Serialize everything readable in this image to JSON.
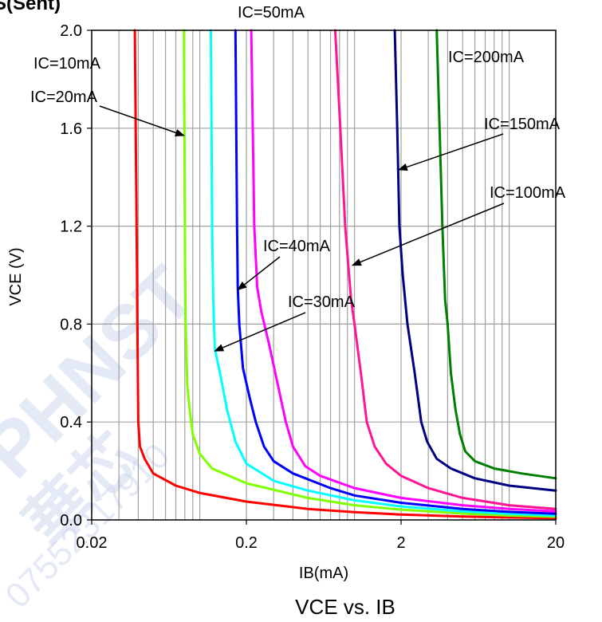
{
  "header": {
    "fragment": "S(Sent)"
  },
  "watermark": {
    "brand": "PHNST",
    "cn": "華芯",
    "phone": "07552317910"
  },
  "colors": {
    "grid": "#a0a0a0",
    "axis": "#000000",
    "arrow": "#000000"
  },
  "chart_data": {
    "type": "line",
    "title": "VCE vs. IB",
    "xlabel": "IB(mA)",
    "ylabel": "VCE (V)",
    "xscale": "log",
    "xlim": [
      0.02,
      20
    ],
    "ylim": [
      0.0,
      2.0
    ],
    "xticks": [
      {
        "v": 0.02,
        "label": "0.02"
      },
      {
        "v": 0.2,
        "label": "0.2"
      },
      {
        "v": 2,
        "label": "2"
      },
      {
        "v": 20,
        "label": "20"
      }
    ],
    "yticks": [
      {
        "v": 0.0,
        "label": "0.0"
      },
      {
        "v": 0.4,
        "label": "0.4"
      },
      {
        "v": 0.8,
        "label": "0.8"
      },
      {
        "v": 1.2,
        "label": "1.2"
      },
      {
        "v": 1.6,
        "label": "1.6"
      },
      {
        "v": 2.0,
        "label": "2.0"
      }
    ],
    "grid": true,
    "series": [
      {
        "name": "IC=10mA",
        "color": "#ff0000",
        "points": [
          [
            0.038,
            2.0
          ],
          [
            0.0385,
            1.6
          ],
          [
            0.039,
            1.2
          ],
          [
            0.0395,
            0.8
          ],
          [
            0.04,
            0.4
          ],
          [
            0.041,
            0.3
          ],
          [
            0.044,
            0.25
          ],
          [
            0.05,
            0.19
          ],
          [
            0.07,
            0.14
          ],
          [
            0.1,
            0.11
          ],
          [
            0.2,
            0.075
          ],
          [
            0.5,
            0.045
          ],
          [
            1.0,
            0.032
          ],
          [
            2.0,
            0.022
          ],
          [
            5.0,
            0.014
          ],
          [
            10.0,
            0.01
          ],
          [
            20.0,
            0.007
          ]
        ]
      },
      {
        "name": "IC=20mA",
        "color": "#80ff00",
        "points": [
          [
            0.079,
            2.0
          ],
          [
            0.0795,
            1.6
          ],
          [
            0.08,
            1.2
          ],
          [
            0.081,
            0.8
          ],
          [
            0.083,
            0.55
          ],
          [
            0.086,
            0.45
          ],
          [
            0.09,
            0.35
          ],
          [
            0.1,
            0.27
          ],
          [
            0.12,
            0.21
          ],
          [
            0.2,
            0.15
          ],
          [
            0.5,
            0.09
          ],
          [
            1.0,
            0.06
          ],
          [
            2.0,
            0.042
          ],
          [
            5.0,
            0.026
          ],
          [
            10.0,
            0.018
          ],
          [
            20.0,
            0.013
          ]
        ]
      },
      {
        "name": "IC=30mA",
        "color": "#00ffff",
        "points": [
          [
            0.118,
            2.0
          ],
          [
            0.119,
            1.6
          ],
          [
            0.12,
            1.2
          ],
          [
            0.122,
            0.9
          ],
          [
            0.125,
            0.7
          ],
          [
            0.135,
            0.6
          ],
          [
            0.15,
            0.45
          ],
          [
            0.17,
            0.32
          ],
          [
            0.2,
            0.23
          ],
          [
            0.3,
            0.16
          ],
          [
            0.5,
            0.12
          ],
          [
            1.0,
            0.08
          ],
          [
            2.0,
            0.055
          ],
          [
            5.0,
            0.035
          ],
          [
            10.0,
            0.025
          ],
          [
            20.0,
            0.018
          ]
        ]
      },
      {
        "name": "IC=40mA",
        "color": "#0000ff",
        "points": [
          [
            0.17,
            2.0
          ],
          [
            0.172,
            1.6
          ],
          [
            0.174,
            1.2
          ],
          [
            0.176,
            0.95
          ],
          [
            0.18,
            0.8
          ],
          [
            0.19,
            0.62
          ],
          [
            0.21,
            0.5
          ],
          [
            0.23,
            0.4
          ],
          [
            0.26,
            0.3
          ],
          [
            0.3,
            0.24
          ],
          [
            0.4,
            0.19
          ],
          [
            0.7,
            0.13
          ],
          [
            1.0,
            0.1
          ],
          [
            2.0,
            0.07
          ],
          [
            5.0,
            0.045
          ],
          [
            10.0,
            0.033
          ],
          [
            20.0,
            0.025
          ]
        ]
      },
      {
        "name": "IC=50mA",
        "color": "#ff00ff",
        "points": [
          [
            0.215,
            2.0
          ],
          [
            0.22,
            1.6
          ],
          [
            0.225,
            1.2
          ],
          [
            0.235,
            0.95
          ],
          [
            0.25,
            0.85
          ],
          [
            0.28,
            0.72
          ],
          [
            0.32,
            0.55
          ],
          [
            0.36,
            0.4
          ],
          [
            0.4,
            0.3
          ],
          [
            0.48,
            0.22
          ],
          [
            0.6,
            0.18
          ],
          [
            1.0,
            0.13
          ],
          [
            2.0,
            0.09
          ],
          [
            5.0,
            0.06
          ],
          [
            10.0,
            0.045
          ],
          [
            20.0,
            0.035
          ]
        ]
      },
      {
        "name": "IC=100mA",
        "color": "#ff1493",
        "points": [
          [
            0.75,
            2.0
          ],
          [
            0.81,
            1.6
          ],
          [
            0.87,
            1.2
          ],
          [
            0.95,
            0.9
          ],
          [
            1.0,
            0.8
          ],
          [
            1.1,
            0.6
          ],
          [
            1.2,
            0.4
          ],
          [
            1.35,
            0.3
          ],
          [
            1.6,
            0.23
          ],
          [
            2.0,
            0.18
          ],
          [
            3.0,
            0.13
          ],
          [
            5.0,
            0.09
          ],
          [
            10.0,
            0.06
          ],
          [
            20.0,
            0.045
          ]
        ]
      },
      {
        "name": "IC=150mA",
        "color": "#000080",
        "points": [
          [
            1.82,
            2.0
          ],
          [
            1.89,
            1.6
          ],
          [
            1.95,
            1.2
          ],
          [
            2.05,
            1.0
          ],
          [
            2.2,
            0.8
          ],
          [
            2.45,
            0.6
          ],
          [
            2.7,
            0.4
          ],
          [
            2.95,
            0.32
          ],
          [
            3.4,
            0.25
          ],
          [
            4.2,
            0.21
          ],
          [
            6.0,
            0.17
          ],
          [
            10.0,
            0.14
          ],
          [
            20.0,
            0.12
          ]
        ]
      },
      {
        "name": "IC=200mA",
        "color": "#008000",
        "points": [
          [
            3.4,
            2.0
          ],
          [
            3.55,
            1.6
          ],
          [
            3.7,
            1.2
          ],
          [
            3.85,
            0.9
          ],
          [
            4.0,
            0.8
          ],
          [
            4.2,
            0.6
          ],
          [
            4.5,
            0.45
          ],
          [
            4.8,
            0.35
          ],
          [
            5.2,
            0.28
          ],
          [
            6.0,
            0.24
          ],
          [
            8.0,
            0.21
          ],
          [
            12.0,
            0.19
          ],
          [
            20.0,
            0.17
          ]
        ]
      }
    ],
    "annotations": [
      {
        "text": "IC=10mA",
        "series": "IC=10mA",
        "arrow": false
      },
      {
        "text": "IC=20mA",
        "series": "IC=20mA",
        "arrow": true,
        "target": [
          0.079,
          1.57
        ]
      },
      {
        "text": "IC=30mA",
        "series": "IC=30mA",
        "arrow": true,
        "target": [
          0.125,
          0.69
        ]
      },
      {
        "text": "IC=40mA",
        "series": "IC=40mA",
        "arrow": true,
        "target": [
          0.176,
          0.94
        ]
      },
      {
        "text": "IC=50mA",
        "series": "IC=50mA",
        "arrow": false
      },
      {
        "text": "IC=100mA",
        "series": "IC=100mA",
        "arrow": true,
        "target": [
          0.97,
          1.04
        ]
      },
      {
        "text": "IC=150mA",
        "series": "IC=150mA",
        "arrow": true,
        "target": [
          1.93,
          1.43
        ]
      },
      {
        "text": "IC=200mA",
        "series": "IC=200mA",
        "arrow": false
      }
    ]
  }
}
